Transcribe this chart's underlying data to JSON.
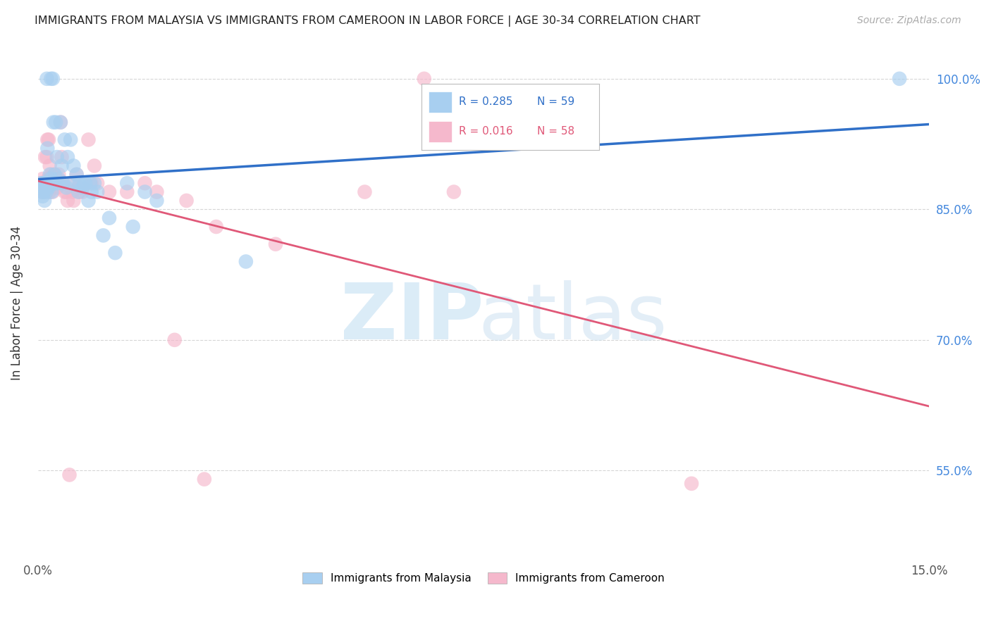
{
  "title": "IMMIGRANTS FROM MALAYSIA VS IMMIGRANTS FROM CAMEROON IN LABOR FORCE | AGE 30-34 CORRELATION CHART",
  "source": "Source: ZipAtlas.com",
  "ylabel": "In Labor Force | Age 30-34",
  "xlim": [
    0.0,
    15.0
  ],
  "ylim": [
    45.0,
    103.5
  ],
  "ytick_positions": [
    55.0,
    70.0,
    85.0,
    100.0
  ],
  "xtick_positions": [
    0.0,
    3.0,
    6.0,
    9.0,
    12.0,
    15.0
  ],
  "malaysia_R": 0.285,
  "malaysia_N": 59,
  "cameroon_R": 0.016,
  "cameroon_N": 58,
  "malaysia_color": "#a8cff0",
  "cameroon_color": "#f5b8cc",
  "malaysia_edge_color": "#7ab0e0",
  "cameroon_edge_color": "#e888a8",
  "malaysia_line_color": "#3070c8",
  "cameroon_line_color": "#e05878",
  "background_color": "#ffffff",
  "grid_color": "#cccccc",
  "watermark_zip_color": "#cde4f5",
  "watermark_atlas_color": "#c8dff0",
  "malaysia_x": [
    0.05,
    0.06,
    0.07,
    0.08,
    0.08,
    0.09,
    0.1,
    0.1,
    0.11,
    0.12,
    0.13,
    0.14,
    0.15,
    0.16,
    0.17,
    0.18,
    0.19,
    0.2,
    0.21,
    0.22,
    0.23,
    0.24,
    0.25,
    0.26,
    0.27,
    0.28,
    0.3,
    0.32,
    0.33,
    0.35,
    0.38,
    0.4,
    0.42,
    0.45,
    0.48,
    0.5,
    0.55,
    0.58,
    0.6,
    0.65,
    0.68,
    0.7,
    0.75,
    0.78,
    0.8,
    0.85,
    0.88,
    0.9,
    0.95,
    1.0,
    1.1,
    1.2,
    1.3,
    1.5,
    1.6,
    1.8,
    2.0,
    3.5,
    14.5
  ],
  "malaysia_y": [
    88.0,
    87.5,
    87.0,
    88.0,
    86.5,
    87.0,
    88.0,
    87.5,
    86.0,
    88.0,
    87.5,
    87.0,
    100.0,
    92.0,
    88.0,
    87.5,
    88.0,
    89.0,
    88.5,
    100.0,
    87.0,
    88.0,
    100.0,
    95.0,
    88.0,
    89.0,
    95.0,
    91.0,
    88.0,
    88.5,
    95.0,
    90.0,
    88.0,
    93.0,
    87.5,
    91.0,
    93.0,
    88.0,
    90.0,
    89.0,
    87.0,
    88.0,
    87.5,
    88.0,
    88.0,
    86.0,
    88.0,
    87.0,
    88.0,
    87.0,
    82.0,
    84.0,
    80.0,
    88.0,
    83.0,
    87.0,
    86.0,
    79.0,
    100.0
  ],
  "cameroon_x": [
    0.05,
    0.06,
    0.07,
    0.08,
    0.09,
    0.1,
    0.11,
    0.12,
    0.13,
    0.14,
    0.15,
    0.16,
    0.17,
    0.18,
    0.19,
    0.2,
    0.21,
    0.22,
    0.23,
    0.25,
    0.27,
    0.28,
    0.3,
    0.32,
    0.33,
    0.35,
    0.38,
    0.4,
    0.42,
    0.45,
    0.48,
    0.5,
    0.55,
    0.58,
    0.6,
    0.65,
    0.68,
    0.7,
    0.75,
    0.8,
    0.85,
    0.9,
    0.95,
    1.0,
    1.2,
    1.5,
    1.8,
    2.0,
    2.5,
    2.8,
    3.0,
    4.0,
    5.5,
    6.5,
    7.0,
    11.0,
    2.3,
    0.53
  ],
  "cameroon_y": [
    88.0,
    87.5,
    87.0,
    88.5,
    87.0,
    88.0,
    87.0,
    91.0,
    88.0,
    87.5,
    91.0,
    93.0,
    88.5,
    93.0,
    87.0,
    90.0,
    88.0,
    89.0,
    88.0,
    87.0,
    88.0,
    89.0,
    88.0,
    87.5,
    88.5,
    89.0,
    95.0,
    91.0,
    88.0,
    87.0,
    87.0,
    86.0,
    88.0,
    87.0,
    86.0,
    89.0,
    87.5,
    87.0,
    87.0,
    88.0,
    93.0,
    88.0,
    90.0,
    88.0,
    87.0,
    87.0,
    88.0,
    87.0,
    86.0,
    54.0,
    83.0,
    81.0,
    87.0,
    100.0,
    87.0,
    53.5,
    70.0,
    54.5
  ]
}
